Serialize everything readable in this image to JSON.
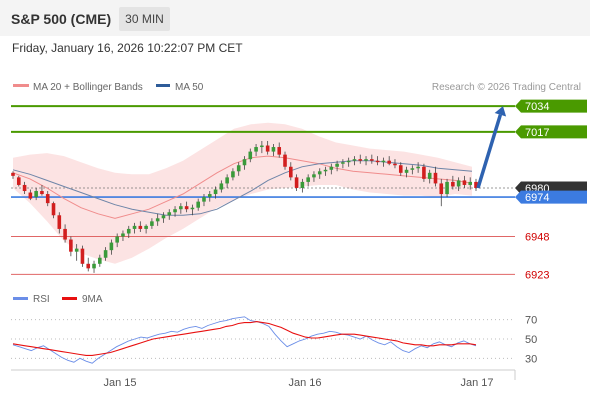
{
  "header": {
    "title": "S&P 500 (CME)",
    "timeframe": "30 MIN"
  },
  "datetime": "Friday, January 16, 2026 10:22:07 PM CET",
  "legend": {
    "items": [
      "MA 20 + Bollinger Bands",
      "MA 50"
    ],
    "credit": "Research © 2026 Trading Central"
  },
  "colors": {
    "ma20": "#f08c8c",
    "band": "#fbdada",
    "ma50": "#6e85a8",
    "up": "#3a9a3a",
    "down": "#d21e1e",
    "resistance": "#4a9a00",
    "pivot": "#3c7be0",
    "support": "#e06666",
    "current": "#333333",
    "arrow": "#2e62b0",
    "rsi": "#6b8ee8",
    "rsi_ma": "#e81010"
  },
  "chart_data": [
    {
      "type": "candlestick",
      "ylim": [
        6918,
        7040
      ],
      "x_ticks": [
        "Jan 15",
        "Jan 16",
        "Jan 17"
      ],
      "price_levels": [
        {
          "value": 7034,
          "label": "7034",
          "kind": "resistance"
        },
        {
          "value": 7017,
          "label": "7017",
          "kind": "resistance"
        },
        {
          "value": 6980,
          "label": "6980",
          "kind": "current"
        },
        {
          "value": 6974,
          "label": "6974",
          "kind": "pivot"
        },
        {
          "value": 6948,
          "label": "6948",
          "kind": "support"
        },
        {
          "value": 6923,
          "label": "6923",
          "kind": "support"
        }
      ],
      "forecast_arrow": {
        "from": 6980,
        "to": 7034
      },
      "series": [
        {
          "name": "MA 20 + Bollinger Bands",
          "mid": [
            6990,
            6986,
            6980,
            6973,
            6967,
            6963,
            6960,
            6963,
            6966,
            6971,
            6976,
            6983,
            6990,
            6996,
            7000,
            7001,
            7000,
            6998,
            6996,
            6993,
            6991,
            6990,
            6989,
            6988,
            6987,
            6986,
            6985,
            6983
          ],
          "upper": [
            7000,
            7002,
            7003,
            7001,
            6997,
            6993,
            6990,
            6989,
            6989,
            6993,
            6998,
            7005,
            7012,
            7019,
            7022,
            7023,
            7022,
            7019,
            7014,
            7010,
            7008,
            7006,
            7005,
            7004,
            7002,
            7000,
            6997,
            6994
          ],
          "lower": [
            6980,
            6970,
            6958,
            6945,
            6937,
            6933,
            6930,
            6934,
            6940,
            6947,
            6953,
            6960,
            6967,
            6972,
            6976,
            6979,
            6980,
            6981,
            6982,
            6982,
            6979,
            6977,
            6976,
            6975,
            6975,
            6974,
            6976,
            6975
          ]
        },
        {
          "name": "MA 50",
          "values": [
            6992,
            6989,
            6985,
            6981,
            6977,
            6973,
            6969,
            6966,
            6964,
            6962,
            6962,
            6963,
            6966,
            6972,
            6978,
            6985,
            6990,
            6994,
            6996,
            6997,
            6998,
            6998,
            6997,
            6996,
            6995,
            6993,
            6992,
            6991
          ]
        }
      ],
      "candles": [
        [
          6990,
          6991,
          6986,
          6988
        ],
        [
          6987,
          6988,
          6981,
          6982
        ],
        [
          6982,
          6984,
          6976,
          6978
        ],
        [
          6977,
          6979,
          6972,
          6973
        ],
        [
          6974,
          6980,
          6972,
          6978
        ],
        [
          6978,
          6982,
          6975,
          6976
        ],
        [
          6976,
          6978,
          6968,
          6970
        ],
        [
          6970,
          6971,
          6960,
          6962
        ],
        [
          6962,
          6964,
          6950,
          6953
        ],
        [
          6953,
          6956,
          6944,
          6946
        ],
        [
          6946,
          6948,
          6935,
          6938
        ],
        [
          6938,
          6943,
          6932,
          6940
        ],
        [
          6940,
          6942,
          6928,
          6930
        ],
        [
          6930,
          6934,
          6925,
          6927
        ],
        [
          6927,
          6932,
          6924,
          6930
        ],
        [
          6930,
          6936,
          6928,
          6934
        ],
        [
          6934,
          6941,
          6932,
          6939
        ],
        [
          6939,
          6946,
          6936,
          6944
        ],
        [
          6944,
          6950,
          6941,
          6948
        ],
        [
          6948,
          6952,
          6945,
          6950
        ],
        [
          6950,
          6955,
          6947,
          6953
        ],
        [
          6953,
          6957,
          6950,
          6955
        ],
        [
          6955,
          6958,
          6951,
          6953
        ],
        [
          6953,
          6956,
          6950,
          6955
        ],
        [
          6955,
          6960,
          6953,
          6958
        ],
        [
          6958,
          6963,
          6955,
          6960
        ],
        [
          6960,
          6964,
          6957,
          6962
        ],
        [
          6962,
          6966,
          6959,
          6964
        ],
        [
          6964,
          6968,
          6961,
          6966
        ],
        [
          6966,
          6970,
          6963,
          6968
        ],
        [
          6968,
          6971,
          6964,
          6966
        ],
        [
          6966,
          6969,
          6962,
          6967
        ],
        [
          6967,
          6973,
          6965,
          6971
        ],
        [
          6971,
          6976,
          6968,
          6974
        ],
        [
          6974,
          6978,
          6971,
          6976
        ],
        [
          6976,
          6981,
          6973,
          6979
        ],
        [
          6979,
          6985,
          6977,
          6983
        ],
        [
          6983,
          6989,
          6980,
          6987
        ],
        [
          6987,
          6993,
          6985,
          6991
        ],
        [
          6991,
          6997,
          6988,
          6995
        ],
        [
          6995,
          7001,
          6992,
          6999
        ],
        [
          6999,
          7006,
          6997,
          7004
        ],
        [
          7004,
          7009,
          7001,
          7007
        ],
        [
          7007,
          7011,
          7003,
          7008
        ],
        [
          7008,
          7011,
          7002,
          7004
        ],
        [
          7004,
          7009,
          7001,
          7007
        ],
        [
          7007,
          7010,
          7000,
          7002
        ],
        [
          7002,
          7004,
          6992,
          6994
        ],
        [
          6994,
          6997,
          6985,
          6987
        ],
        [
          6987,
          6989,
          6978,
          6980
        ],
        [
          6980,
          6986,
          6977,
          6984
        ],
        [
          6984,
          6989,
          6981,
          6987
        ],
        [
          6987,
          6991,
          6984,
          6989
        ],
        [
          6989,
          6993,
          6986,
          6991
        ],
        [
          6991,
          6994,
          6988,
          6992
        ],
        [
          6992,
          6996,
          6989,
          6994
        ],
        [
          6994,
          6998,
          6991,
          6996
        ],
        [
          6996,
          6999,
          6993,
          6997
        ],
        [
          6997,
          7000,
          6994,
          6998
        ],
        [
          6998,
          7001,
          6995,
          6999
        ],
        [
          6999,
          7002,
          6996,
          6998
        ],
        [
          6998,
          7001,
          6995,
          6999
        ],
        [
          6999,
          7002,
          6996,
          6998
        ],
        [
          6998,
          7001,
          6995,
          6997
        ],
        [
          6997,
          7000,
          6994,
          6998
        ],
        [
          6998,
          7001,
          6995,
          6996
        ],
        [
          6996,
          6999,
          6993,
          6995
        ],
        [
          6995,
          6997,
          6988,
          6990
        ],
        [
          6990,
          6994,
          6987,
          6992
        ],
        [
          6992,
          6995,
          6989,
          6993
        ],
        [
          6993,
          6997,
          6990,
          6994
        ],
        [
          6994,
          6996,
          6984,
          6986
        ],
        [
          6986,
          6992,
          6983,
          6990
        ],
        [
          6990,
          6994,
          6981,
          6983
        ],
        [
          6983,
          6986,
          6968,
          6976
        ],
        [
          6976,
          6986,
          6974,
          6984
        ],
        [
          6984,
          6988,
          6979,
          6981
        ],
        [
          6981,
          6987,
          6978,
          6985
        ],
        [
          6985,
          6988,
          6980,
          6982
        ],
        [
          6982,
          6987,
          6979,
          6984
        ],
        [
          6984,
          6986,
          6978,
          6980
        ]
      ]
    },
    {
      "type": "line",
      "ylim": [
        20,
        80
      ],
      "y_ticks": [
        70,
        50,
        30
      ],
      "legend": [
        "RSI",
        "9MA"
      ],
      "series": [
        {
          "name": "RSI",
          "values": [
            44,
            42,
            40,
            38,
            41,
            43,
            39,
            35,
            31,
            28,
            26,
            30,
            27,
            25,
            30,
            34,
            38,
            42,
            45,
            48,
            50,
            52,
            51,
            53,
            55,
            56,
            58,
            57,
            60,
            62,
            63,
            61,
            64,
            66,
            68,
            69,
            71,
            72,
            73,
            69,
            68,
            66,
            63,
            55,
            48,
            42,
            45,
            48,
            50,
            53,
            55,
            56,
            58,
            57,
            55,
            54,
            52,
            50,
            53,
            49,
            46,
            44,
            47,
            42,
            38,
            36,
            40,
            43,
            41,
            45,
            47,
            44,
            42,
            46,
            48,
            45,
            43
          ]
        },
        {
          "name": "9MA",
          "values": [
            45,
            44,
            43,
            42,
            41,
            40,
            39,
            38,
            37,
            36,
            35,
            34,
            33,
            33,
            34,
            35,
            36,
            38,
            40,
            42,
            44,
            46,
            48,
            50,
            51,
            52,
            53,
            54,
            55,
            56,
            57,
            58,
            59,
            60,
            61,
            63,
            64,
            66,
            67,
            67,
            68,
            67,
            66,
            64,
            62,
            59,
            56,
            54,
            52,
            51,
            51,
            52,
            53,
            54,
            55,
            55,
            55,
            54,
            53,
            52,
            51,
            50,
            49,
            48,
            46,
            45,
            44,
            44,
            43,
            43,
            44,
            44,
            44,
            45,
            45,
            45,
            44
          ]
        }
      ]
    }
  ]
}
